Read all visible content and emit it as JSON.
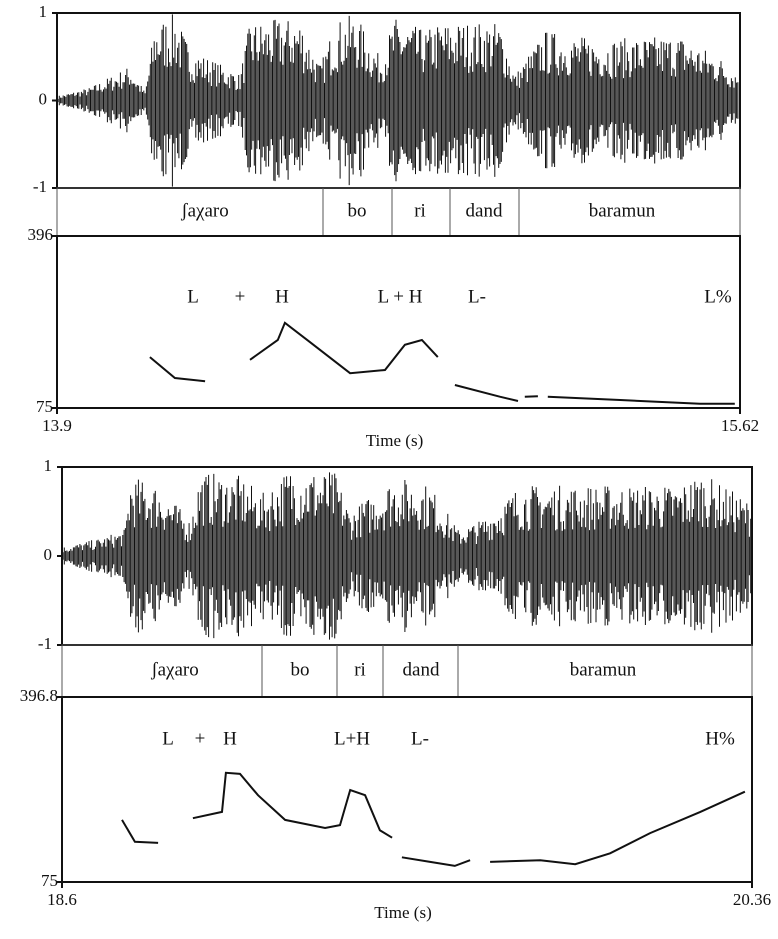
{
  "panels": [
    {
      "waveform": {
        "yticks": [
          1,
          0,
          -1
        ]
      },
      "tier": [
        "ʃaχaro",
        "bo",
        "ri",
        "dand",
        "baramun"
      ],
      "pitch": {
        "ylim": [
          75,
          396
        ],
        "yticks": [
          396,
          75
        ],
        "xlim": [
          13.9,
          15.62
        ],
        "xticks": [
          13.9,
          15.62
        ],
        "xlabel": "Time (s)",
        "annotations": [
          "L",
          "+",
          "H",
          "L + H",
          "L-",
          "L%"
        ],
        "contour": [
          {
            "x": [
              14.134,
              14.197,
              14.273
            ],
            "y": [
              170,
              131,
              125
            ]
          },
          {
            "x": [
              14.386,
              14.456,
              14.474,
              14.537,
              14.638,
              14.726,
              14.776,
              14.819,
              14.859
            ],
            "y": [
              165,
              202,
              234,
              198,
              140,
              146,
              193,
              202,
              170
            ]
          },
          {
            "x": [
              14.902,
              15.015,
              15.061
            ],
            "y": [
              118,
              96,
              88
            ]
          },
          {
            "x": [
              15.078,
              15.111
            ],
            "y": [
              96,
              97
            ]
          },
          {
            "x": [
              15.136,
              15.318,
              15.519,
              15.607
            ],
            "y": [
              96,
              90,
              83,
              83
            ]
          }
        ]
      }
    },
    {
      "waveform": {
        "yticks": [
          1,
          0,
          -1
        ]
      },
      "tier": [
        "ʃaχaro",
        "bo",
        "ri",
        "dand",
        "baramun"
      ],
      "pitch": {
        "ylim": [
          75,
          396.8
        ],
        "yticks": [
          396.8,
          75
        ],
        "xlim": [
          18.6,
          20.36
        ],
        "xticks": [
          18.6,
          20.36
        ],
        "xlabel": "Time (s)",
        "annotations": [
          "L",
          "+",
          "H",
          "L+H",
          "L-",
          "H%"
        ],
        "contour": [
          {
            "x": [
              18.753,
              18.786,
              18.845
            ],
            "y": [
              183,
              145,
              143
            ]
          },
          {
            "x": [
              18.934,
              19.008,
              19.018,
              19.054,
              19.1,
              19.169,
              19.271,
              19.309,
              19.335,
              19.373,
              19.411,
              19.442
            ],
            "y": [
              186,
              197,
              265,
              263,
              226,
              183,
              169,
              174,
              235,
              226,
              165,
              152
            ]
          },
          {
            "x": [
              19.467,
              19.539,
              19.602,
              19.641
            ],
            "y": [
              118,
              110,
              103,
              113
            ]
          },
          {
            "x": [
              19.692,
              19.82,
              19.909,
              19.998,
              20.1,
              20.228,
              20.342
            ],
            "y": [
              110,
              113,
              106,
              125,
              160,
              197,
              232
            ]
          }
        ]
      }
    }
  ]
}
